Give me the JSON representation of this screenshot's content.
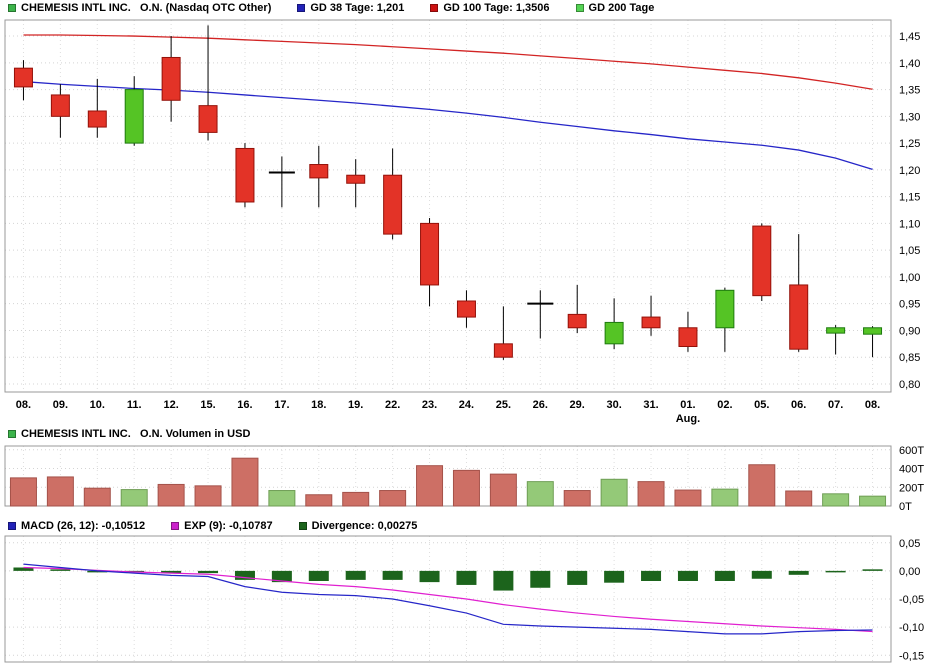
{
  "panels": {
    "price": {
      "legend": [
        {
          "label": "CHEMESIS INTL INC.   O.N. (Nasdaq OTC Other)",
          "color": "#3cb44b"
        },
        {
          "label": "GD 38 Tage: 1,201",
          "color": "#2222b8"
        },
        {
          "label": "GD 100 Tage: 1,3506",
          "color": "#cc1111"
        },
        {
          "label": "GD 200 Tage",
          "color": "#55d455"
        }
      ]
    },
    "volume": {
      "legend": [
        {
          "label": "CHEMESIS INTL INC.   O.N. Volumen in USD",
          "color": "#3cb44b"
        }
      ]
    },
    "macd": {
      "legend": [
        {
          "label": "MACD (26, 12): -0,10512",
          "color": "#2222b8"
        },
        {
          "label": "EXP (9): -0,10787",
          "color": "#cc22cc"
        },
        {
          "label": "Divergence: 0,00275",
          "color": "#1c641c"
        }
      ]
    }
  },
  "chart_data": [
    {
      "type": "candlestick",
      "title": "CHEMESIS INTL INC. O.N. (Nasdaq OTC Other)",
      "categories": [
        "08.",
        "09.",
        "10.",
        "11.",
        "12.",
        "15.",
        "16.",
        "17.",
        "18.",
        "19.",
        "22.",
        "23.",
        "24.",
        "25.",
        "26.",
        "29.",
        "30.",
        "31.",
        "01.",
        "02.",
        "05.",
        "06.",
        "07.",
        "08."
      ],
      "month_label": {
        "index": 18,
        "text": "Aug."
      },
      "candles": [
        [
          1.39,
          1.405,
          1.33,
          1.355
        ],
        [
          1.34,
          1.36,
          1.26,
          1.3
        ],
        [
          1.31,
          1.37,
          1.26,
          1.28
        ],
        [
          1.25,
          1.375,
          1.245,
          1.35
        ],
        [
          1.41,
          1.45,
          1.29,
          1.33
        ],
        [
          1.32,
          1.47,
          1.255,
          1.27
        ],
        [
          1.24,
          1.25,
          1.13,
          1.14
        ],
        [
          1.195,
          1.225,
          1.13,
          1.195
        ],
        [
          1.21,
          1.245,
          1.13,
          1.185
        ],
        [
          1.19,
          1.22,
          1.13,
          1.175
        ],
        [
          1.19,
          1.24,
          1.07,
          1.08
        ],
        [
          1.1,
          1.11,
          0.945,
          0.985
        ],
        [
          0.955,
          0.975,
          0.905,
          0.925
        ],
        [
          0.875,
          0.945,
          0.845,
          0.85
        ],
        [
          0.95,
          0.975,
          0.885,
          0.95
        ],
        [
          0.93,
          0.985,
          0.895,
          0.905
        ],
        [
          0.875,
          0.96,
          0.865,
          0.915
        ],
        [
          0.925,
          0.965,
          0.89,
          0.905
        ],
        [
          0.905,
          0.935,
          0.86,
          0.87
        ],
        [
          0.905,
          0.98,
          0.86,
          0.975
        ],
        [
          1.095,
          1.1,
          0.955,
          0.965
        ],
        [
          0.985,
          1.08,
          0.86,
          0.865
        ],
        [
          0.895,
          0.91,
          0.855,
          0.905
        ],
        [
          0.893,
          0.908,
          0.85,
          0.905
        ]
      ],
      "series": [
        {
          "name": "GD 38 Tage",
          "value_label": "1,201",
          "color": "#2626c8",
          "values": [
            1.365,
            1.36,
            1.356,
            1.352,
            1.349,
            1.345,
            1.34,
            1.335,
            1.33,
            1.325,
            1.319,
            1.313,
            1.306,
            1.298,
            1.289,
            1.281,
            1.273,
            1.266,
            1.258,
            1.252,
            1.246,
            1.237,
            1.222,
            1.201
          ]
        },
        {
          "name": "GD 100 Tage",
          "value_label": "1,3506",
          "color": "#d22424",
          "values": [
            1.452,
            1.452,
            1.451,
            1.45,
            1.448,
            1.446,
            1.443,
            1.44,
            1.437,
            1.434,
            1.43,
            1.426,
            1.422,
            1.418,
            1.413,
            1.408,
            1.403,
            1.398,
            1.392,
            1.386,
            1.38,
            1.372,
            1.362,
            1.3506
          ]
        }
      ],
      "colors": {
        "up": "#55c425",
        "down": "#e33327"
      },
      "ylim": [
        0.785,
        1.48
      ],
      "yticks": [
        {
          "v": 1.45,
          "label": "1,45"
        },
        {
          "v": 1.4,
          "label": "1,40"
        },
        {
          "v": 1.35,
          "label": "1,35"
        },
        {
          "v": 1.3,
          "label": "1,30"
        },
        {
          "v": 1.25,
          "label": "1,25"
        },
        {
          "v": 1.2,
          "label": "1,20"
        },
        {
          "v": 1.15,
          "label": "1,15"
        },
        {
          "v": 1.1,
          "label": "1,10"
        },
        {
          "v": 1.05,
          "label": "1,05"
        },
        {
          "v": 1.0,
          "label": "1,00"
        },
        {
          "v": 0.95,
          "label": "0,95"
        },
        {
          "v": 0.9,
          "label": "0,90"
        },
        {
          "v": 0.85,
          "label": "0,85"
        },
        {
          "v": 0.8,
          "label": "0,80"
        }
      ]
    },
    {
      "type": "bar",
      "title": "CHEMESIS INTL INC. O.N. Volumen in USD",
      "unit": "T",
      "values": [
        300,
        310,
        190,
        175,
        230,
        215,
        510,
        165,
        120,
        145,
        165,
        430,
        380,
        340,
        260,
        165,
        285,
        260,
        170,
        180,
        440,
        160,
        130,
        105
      ],
      "directions": [
        "down",
        "down",
        "down",
        "up",
        "down",
        "down",
        "down",
        "up",
        "down",
        "down",
        "down",
        "down",
        "down",
        "down",
        "up",
        "down",
        "up",
        "down",
        "down",
        "up",
        "down",
        "down",
        "up",
        "up"
      ],
      "colors": {
        "up": "#94c978",
        "down": "#cd6f65"
      },
      "ylim": [
        0,
        640
      ],
      "yticks": [
        {
          "v": 600,
          "label": "600T"
        },
        {
          "v": 400,
          "label": "400T"
        },
        {
          "v": 200,
          "label": "200T"
        },
        {
          "v": 0,
          "label": "0T"
        }
      ]
    },
    {
      "type": "macd",
      "macd": [
        0.012,
        0.006,
        0.0,
        -0.004,
        -0.008,
        -0.01,
        -0.028,
        -0.038,
        -0.042,
        -0.044,
        -0.05,
        -0.062,
        -0.075,
        -0.095,
        -0.098,
        -0.1,
        -0.102,
        -0.104,
        -0.108,
        -0.112,
        -0.112,
        -0.108,
        -0.106,
        -0.10512
      ],
      "exp": [
        0.006,
        0.004,
        0.001,
        -0.002,
        -0.004,
        -0.006,
        -0.012,
        -0.018,
        -0.024,
        -0.028,
        -0.034,
        -0.042,
        -0.05,
        -0.06,
        -0.068,
        -0.075,
        -0.081,
        -0.086,
        -0.09,
        -0.094,
        -0.098,
        -0.101,
        -0.104,
        -0.10787
      ],
      "divergence": [
        0.006,
        0.002,
        -0.001,
        -0.002,
        -0.004,
        -0.004,
        -0.016,
        -0.02,
        -0.018,
        -0.016,
        -0.016,
        -0.02,
        -0.025,
        -0.035,
        -0.03,
        -0.025,
        -0.021,
        -0.018,
        -0.018,
        -0.018,
        -0.014,
        -0.007,
        -0.002,
        0.00275
      ],
      "colors": {
        "macd": "#2626c8",
        "exp": "#e020d0",
        "divergence": "#1c641c"
      },
      "ylim": [
        -0.162,
        0.062
      ],
      "yticks": [
        {
          "v": 0.05,
          "label": "0,05"
        },
        {
          "v": 0.0,
          "label": "0,00"
        },
        {
          "v": -0.05,
          "label": "-0,05"
        },
        {
          "v": -0.1,
          "label": "-0,10"
        },
        {
          "v": -0.15,
          "label": "-0,15"
        }
      ]
    }
  ]
}
